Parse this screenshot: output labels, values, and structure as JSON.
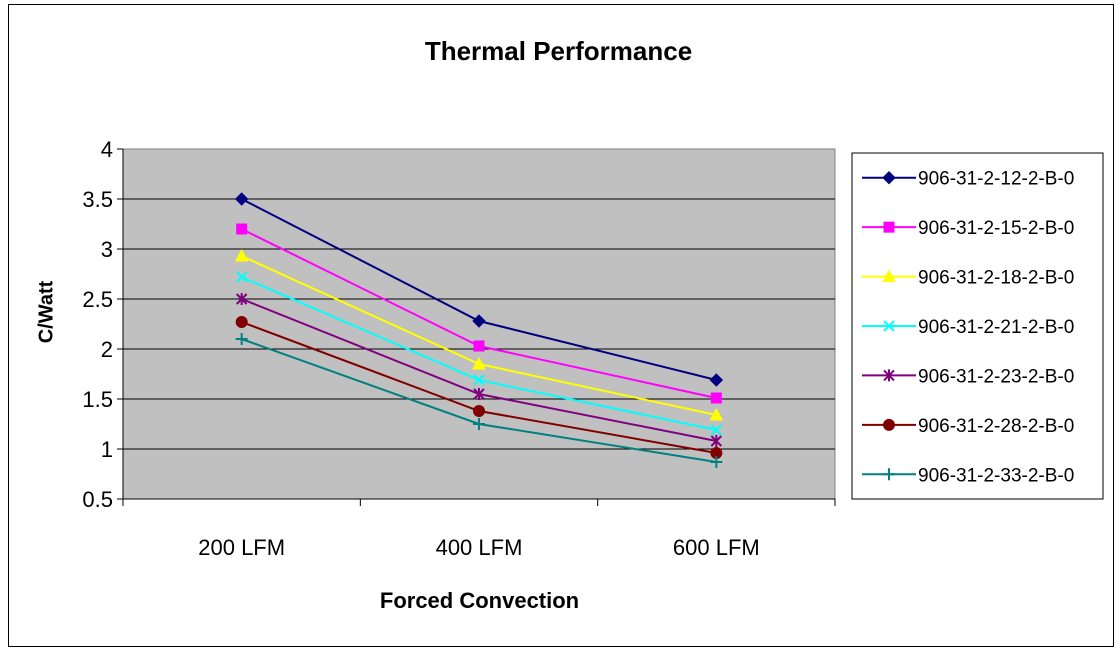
{
  "chart_data": {
    "type": "line",
    "title": "Thermal Performance",
    "xlabel": "Forced Convection",
    "ylabel": "C/Watt",
    "categories": [
      "200 LFM",
      "400 LFM",
      "600 LFM"
    ],
    "ylim": [
      0.5,
      4
    ],
    "yticks": [
      "4",
      "3.5",
      "3",
      "2.5",
      "2",
      "1.5",
      "1",
      "0.5"
    ],
    "ytick_values": [
      4,
      3.5,
      3,
      2.5,
      2,
      1.5,
      1,
      0.5
    ],
    "grid": true,
    "legend_position": "right",
    "plot_background": "#c0c0c0",
    "series": [
      {
        "name": "906-31-2-12-2-B-0",
        "values": [
          3.5,
          2.28,
          1.69
        ],
        "color": "#000080",
        "marker": "diamond"
      },
      {
        "name": "906-31-2-15-2-B-0",
        "values": [
          3.2,
          2.03,
          1.51
        ],
        "color": "#ff00ff",
        "marker": "square"
      },
      {
        "name": "906-31-2-18-2-B-0",
        "values": [
          2.93,
          1.85,
          1.34
        ],
        "color": "#ffff00",
        "marker": "triangle"
      },
      {
        "name": "906-31-2-21-2-B-0",
        "values": [
          2.72,
          1.69,
          1.19
        ],
        "color": "#00ffff",
        "marker": "x"
      },
      {
        "name": "906-31-2-23-2-B-0",
        "values": [
          2.5,
          1.55,
          1.08
        ],
        "color": "#800080",
        "marker": "asterisk"
      },
      {
        "name": "906-31-2-28-2-B-0",
        "values": [
          2.27,
          1.38,
          0.96
        ],
        "color": "#800000",
        "marker": "circle"
      },
      {
        "name": "906-31-2-33-2-B-0",
        "values": [
          2.1,
          1.25,
          0.87
        ],
        "color": "#008080",
        "marker": "plus"
      }
    ]
  }
}
